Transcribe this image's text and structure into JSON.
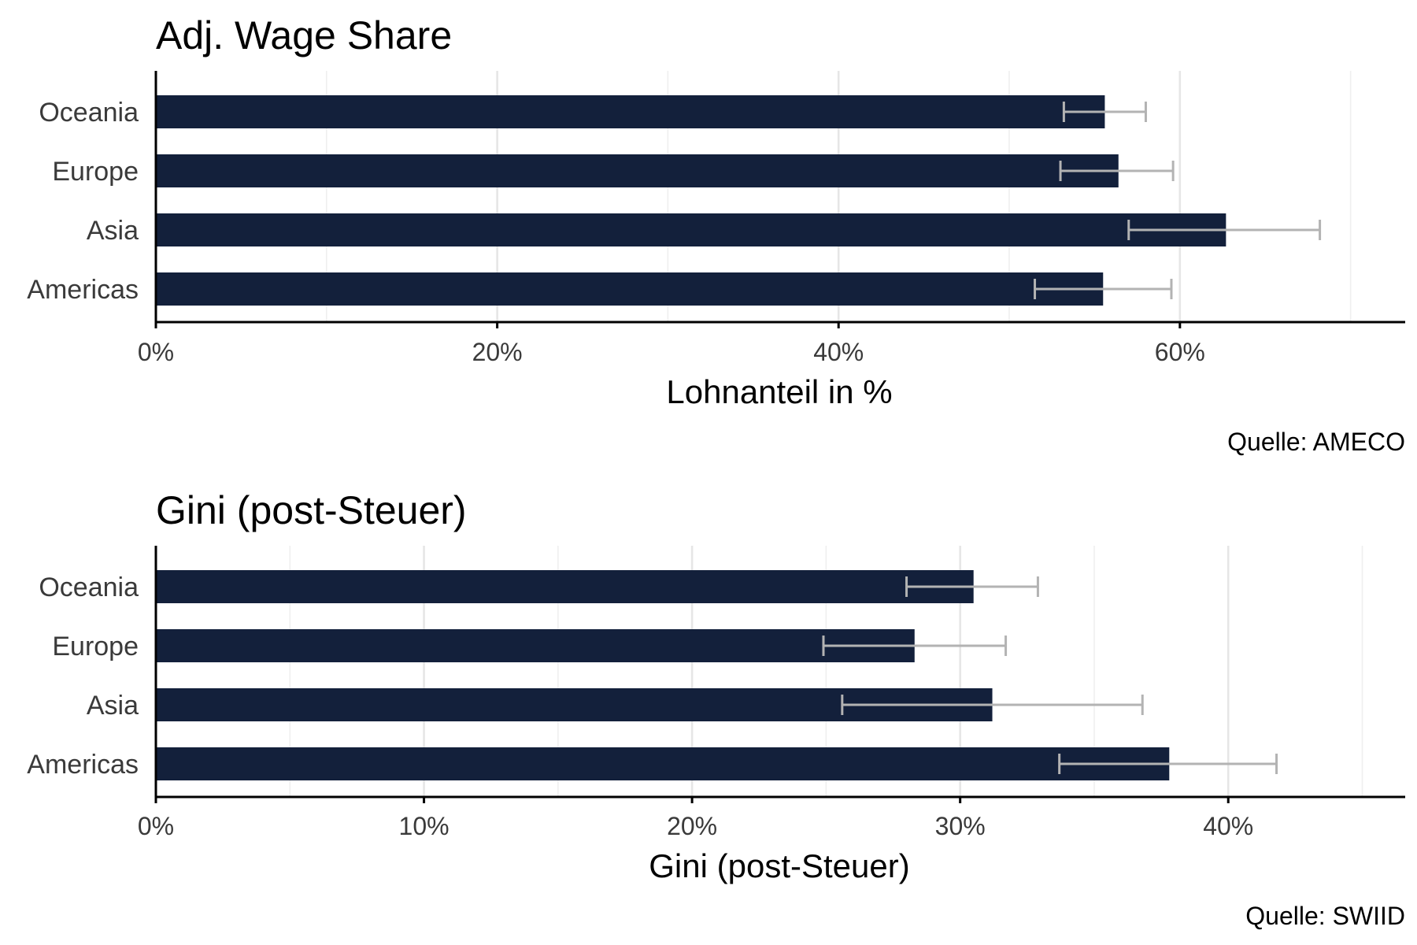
{
  "chart_data": [
    {
      "type": "bar",
      "orientation": "horizontal",
      "title": "Adj. Wage Share",
      "xlabel": "Lohnanteil in %",
      "ylabel": "",
      "caption": "Quelle: AMECO",
      "categories": [
        "Oceania",
        "Europe",
        "Asia",
        "Americas"
      ],
      "values": [
        55.6,
        56.4,
        62.7,
        55.5
      ],
      "error_low": [
        53.2,
        53.0,
        57.0,
        51.5
      ],
      "error_high": [
        58.0,
        59.6,
        68.2,
        59.5
      ],
      "xlim": [
        0,
        73.2
      ],
      "xticks": [
        0,
        20,
        40,
        60
      ],
      "xtick_labels": [
        "0%",
        "20%",
        "40%",
        "60%"
      ],
      "grid": true,
      "bar_color": "#13203b",
      "error_color": "#b3b3b3"
    },
    {
      "type": "bar",
      "orientation": "horizontal",
      "title": "Gini (post-Steuer)",
      "xlabel": "Gini (post-Steuer)",
      "ylabel": "",
      "caption": "Quelle: SWIID",
      "categories": [
        "Oceania",
        "Europe",
        "Asia",
        "Americas"
      ],
      "values": [
        30.5,
        28.3,
        31.2,
        37.8
      ],
      "error_low": [
        28.0,
        24.9,
        25.6,
        33.7
      ],
      "error_high": [
        32.9,
        31.7,
        36.8,
        41.8
      ],
      "xlim": [
        0,
        46.6
      ],
      "xticks": [
        0,
        10,
        20,
        30,
        40
      ],
      "xtick_labels": [
        "0%",
        "10%",
        "20%",
        "30%",
        "40%"
      ],
      "grid": true,
      "bar_color": "#13203b",
      "error_color": "#b3b3b3"
    }
  ]
}
